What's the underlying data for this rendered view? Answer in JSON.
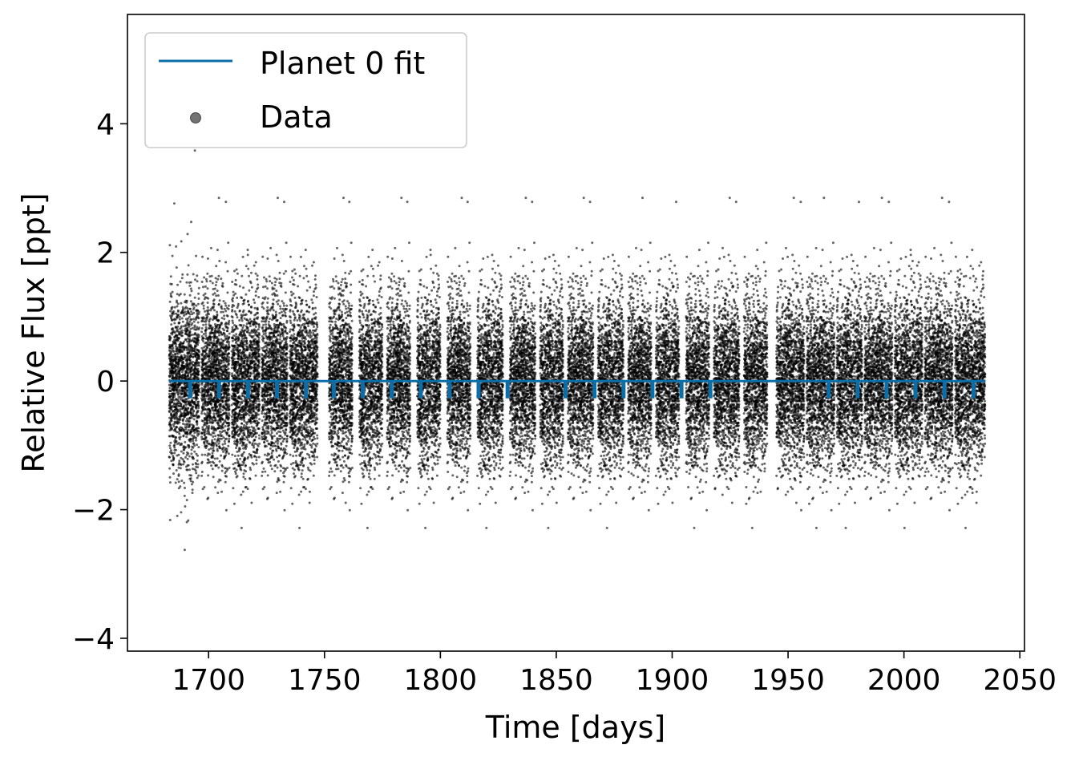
{
  "chart_data": {
    "type": "scatter",
    "title": "",
    "xlabel": "Time [days]",
    "ylabel": "Relative Flux [ppt]",
    "xlim": [
      1665,
      2052
    ],
    "ylim": [
      -4.2,
      5.7
    ],
    "xticks": [
      1700,
      1750,
      1800,
      1850,
      1900,
      1950,
      2000,
      2050
    ],
    "yticks": [
      -4,
      -2,
      0,
      2,
      4
    ],
    "xtick_labels": [
      "1700",
      "1750",
      "1800",
      "1850",
      "1900",
      "1950",
      "2000",
      "2050"
    ],
    "ytick_labels": [
      "−4",
      "−2",
      "0",
      "2",
      "4"
    ],
    "grid": false,
    "legend": {
      "placement": "top-left",
      "entries": [
        "Planet 0 fit",
        "Data"
      ]
    },
    "colors": {
      "fit": "#0b6ea8",
      "data": "#000000"
    },
    "series": [
      {
        "name": "Data",
        "kind": "scatter",
        "observing_segments": [
          [
            1683,
            1696
          ],
          [
            1697,
            1709
          ],
          [
            1710,
            1722
          ],
          [
            1723,
            1734
          ],
          [
            1735,
            1747
          ],
          [
            1752,
            1762
          ],
          [
            1765,
            1775
          ],
          [
            1777,
            1787
          ],
          [
            1790,
            1800
          ],
          [
            1803,
            1813
          ],
          [
            1816,
            1827
          ],
          [
            1830,
            1841
          ],
          [
            1843,
            1853
          ],
          [
            1855,
            1866
          ],
          [
            1868,
            1879
          ],
          [
            1881,
            1891
          ],
          [
            1893,
            1903
          ],
          [
            1906,
            1916
          ],
          [
            1918,
            1929
          ],
          [
            1931,
            1941
          ],
          [
            1945,
            1957
          ],
          [
            1958,
            1970
          ],
          [
            1971,
            1982
          ],
          [
            1983,
            1995
          ],
          [
            1996,
            2008
          ],
          [
            2009,
            2021
          ],
          [
            2022,
            2035
          ]
        ],
        "typical_scatter_ppt": 0.65,
        "y_range": [
          -3.75,
          5.25
        ]
      },
      {
        "name": "Planet 0 fit",
        "kind": "line",
        "baseline": 0,
        "transit_depth": -0.25,
        "transit_times": [
          1692,
          1704.5,
          1717,
          1729.5,
          1742,
          1754,
          1766.5,
          1779,
          1791.5,
          1804,
          1816.5,
          1829,
          1854,
          1866.5,
          1879,
          1891.5,
          1904,
          1916.5,
          1967.5,
          1980,
          1992.5,
          2005,
          2017.5,
          2030
        ],
        "x_range": [
          1683,
          2035
        ]
      }
    ]
  }
}
